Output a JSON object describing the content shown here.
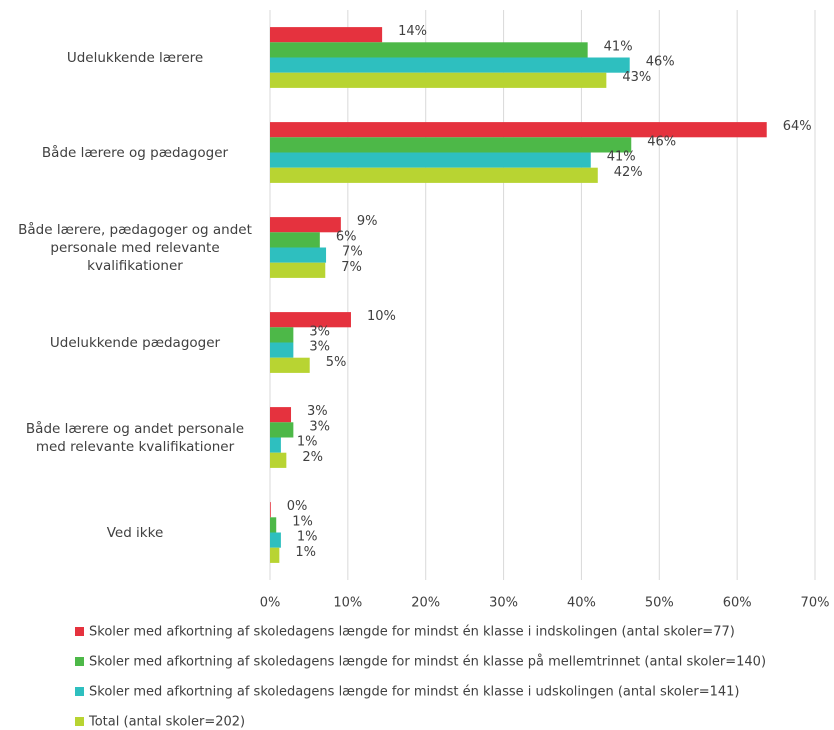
{
  "chart_data": {
    "type": "bar",
    "orientation": "horizontal",
    "categories": [
      "Udelukkende lærere",
      "Både lærere og pædagoger",
      "Både lærere, pædagoger og andet personale med relevante kvalifikationer",
      "Udelukkende pædagoger",
      "Både lærere og andet personale med relevante kvalifikationer",
      "Ved ikke"
    ],
    "series": [
      {
        "name": "Skoler med afkortning af skoledagens længde for mindst én klasse i indskolingen (antal skoler=77)",
        "color": "#e5323e",
        "values": [
          14.4,
          63.8,
          9.1,
          10.4,
          2.7,
          0.1
        ],
        "value_labels": [
          "14%",
          "64%",
          "9%",
          "10%",
          "3%",
          "0%"
        ]
      },
      {
        "name": "Skoler med afkortning af skoledagens længde for mindst én klasse på mellemtrinnet (antal skoler=140)",
        "color": "#4db848",
        "values": [
          40.8,
          46.4,
          6.4,
          3.0,
          3.0,
          0.8
        ],
        "value_labels": [
          "41%",
          "46%",
          "6%",
          "3%",
          "3%",
          "1%"
        ]
      },
      {
        "name": "Skoler med afkortning af skoledagens længde for mindst én klasse i udskolingen (antal skoler=141)",
        "color": "#2ebfbf",
        "values": [
          46.2,
          41.2,
          7.2,
          3.0,
          1.4,
          1.4
        ],
        "value_labels": [
          "46%",
          "41%",
          "7%",
          "3%",
          "1%",
          "1%"
        ]
      },
      {
        "name": "Total (antal skoler=202)",
        "color": "#b8d432",
        "values": [
          43.2,
          42.1,
          7.1,
          5.1,
          2.1,
          1.2
        ],
        "value_labels": [
          "43%",
          "42%",
          "7%",
          "5%",
          "2%",
          "1%"
        ]
      }
    ],
    "xlim": [
      0,
      70
    ],
    "xticks": [
      {
        "value": 0,
        "label": "0%"
      },
      {
        "value": 10,
        "label": "10%"
      },
      {
        "value": 20,
        "label": "20%"
      },
      {
        "value": 30,
        "label": "30%"
      },
      {
        "value": 40,
        "label": "40%"
      },
      {
        "value": 50,
        "label": "50%"
      },
      {
        "value": 60,
        "label": "60%"
      },
      {
        "value": 70,
        "label": "70%"
      }
    ],
    "grid": true,
    "legend": "bottom"
  }
}
